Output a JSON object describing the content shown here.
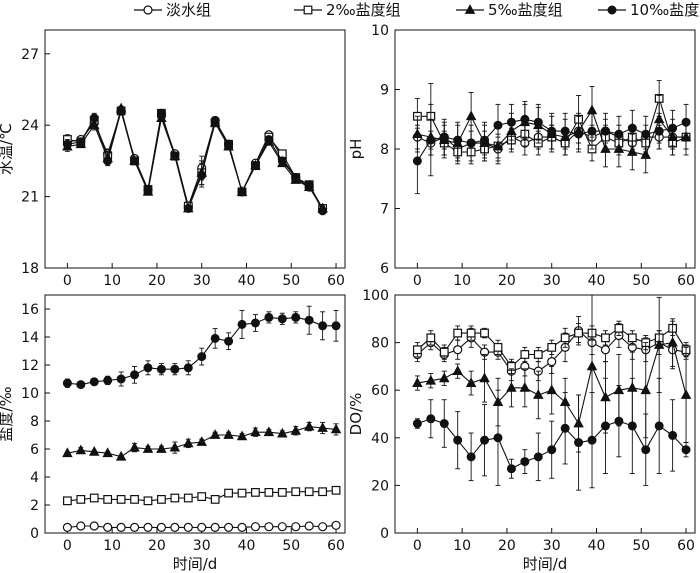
{
  "legend": {
    "items": [
      {
        "label": "淡水组",
        "marker": "open-circle"
      },
      {
        "label": "2‰盐度组",
        "marker": "open-square"
      },
      {
        "label": "5‰盐度组",
        "marker": "filled-triangle"
      },
      {
        "label": "10‰盐度组",
        "marker": "filled-circle"
      }
    ]
  },
  "chart_data": [
    {
      "type": "line",
      "panel": "top-left",
      "ylabel": "水温/℃",
      "xlabel": "",
      "xlim": [
        -5,
        62
      ],
      "ylim": [
        18,
        28
      ],
      "xticks": [
        0,
        10,
        20,
        30,
        40,
        50,
        60
      ],
      "yticks": [
        18,
        21,
        24,
        27
      ],
      "x": [
        0,
        3,
        6,
        9,
        12,
        15,
        18,
        21,
        24,
        27,
        30,
        33,
        36,
        39,
        42,
        45,
        48,
        51,
        54,
        57
      ],
      "series": [
        {
          "name": "淡水组",
          "marker": "open-circle",
          "values": [
            23.3,
            23.4,
            24.1,
            22.8,
            24.6,
            22.6,
            21.3,
            24.4,
            22.8,
            20.6,
            22.2,
            24.2,
            23.2,
            21.2,
            22.4,
            23.6,
            22.6,
            21.8,
            21.4,
            20.5
          ],
          "err": [
            0.2,
            0.1,
            0.2,
            0.2,
            0.1,
            0.1,
            0.1,
            0.1,
            0.1,
            0.1,
            0.5,
            0.1,
            0.1,
            0.1,
            0.1,
            0.1,
            0.1,
            0.1,
            0.1,
            0.1
          ]
        },
        {
          "name": "2‰盐度组",
          "marker": "open-square",
          "values": [
            23.4,
            23.3,
            24.2,
            22.7,
            24.6,
            22.5,
            21.3,
            24.5,
            22.7,
            20.6,
            22.0,
            24.1,
            23.2,
            21.2,
            22.3,
            23.5,
            22.8,
            21.8,
            21.5,
            20.5
          ],
          "err": [
            0.2,
            0.1,
            0.2,
            0.2,
            0.1,
            0.1,
            0.1,
            0.1,
            0.1,
            0.1,
            0.5,
            0.1,
            0.1,
            0.1,
            0.1,
            0.1,
            0.1,
            0.1,
            0.1,
            0.1
          ]
        },
        {
          "name": "5‰盐度组",
          "marker": "filled-triangle",
          "values": [
            23.1,
            23.2,
            24.0,
            22.6,
            24.7,
            22.5,
            21.2,
            24.3,
            22.7,
            20.5,
            22.0,
            24.1,
            23.1,
            21.2,
            22.3,
            23.3,
            22.4,
            21.7,
            21.4,
            20.5
          ],
          "err": [
            0.2,
            0.1,
            0.2,
            0.2,
            0.1,
            0.1,
            0.1,
            0.1,
            0.1,
            0.1,
            0.5,
            0.1,
            0.1,
            0.1,
            0.1,
            0.1,
            0.1,
            0.1,
            0.1,
            0.1
          ]
        },
        {
          "name": "10‰盐度组",
          "marker": "filled-circle",
          "values": [
            23.2,
            23.3,
            24.3,
            22.5,
            24.6,
            22.5,
            21.3,
            24.5,
            22.7,
            20.5,
            21.9,
            24.2,
            23.2,
            21.2,
            22.3,
            23.4,
            22.5,
            21.8,
            21.5,
            20.4
          ],
          "err": [
            0.2,
            0.1,
            0.2,
            0.2,
            0.1,
            0.1,
            0.1,
            0.1,
            0.1,
            0.1,
            0.5,
            0.1,
            0.1,
            0.1,
            0.1,
            0.1,
            0.1,
            0.1,
            0.1,
            0.1
          ]
        }
      ]
    },
    {
      "type": "line",
      "panel": "top-right",
      "ylabel": "pH",
      "xlabel": "",
      "xlim": [
        -5,
        62
      ],
      "ylim": [
        6,
        10
      ],
      "xticks": [
        0,
        10,
        20,
        30,
        40,
        50,
        60
      ],
      "yticks": [
        6,
        7,
        8,
        9,
        10
      ],
      "x": [
        0,
        3,
        6,
        9,
        12,
        15,
        18,
        21,
        24,
        27,
        30,
        33,
        36,
        39,
        42,
        45,
        48,
        51,
        54,
        57,
        60
      ],
      "series": [
        {
          "name": "淡水组",
          "marker": "open-circle",
          "values": [
            8.2,
            8.1,
            8.2,
            8.0,
            8.1,
            8.1,
            8.0,
            8.2,
            8.1,
            8.2,
            8.2,
            8.1,
            8.3,
            8.2,
            8.3,
            8.2,
            8.1,
            8.2,
            8.2,
            8.2,
            8.2
          ],
          "err": [
            0.2,
            0.2,
            0.2,
            0.2,
            0.2,
            0.2,
            0.2,
            0.2,
            0.2,
            0.2,
            0.2,
            0.2,
            0.2,
            0.2,
            0.2,
            0.2,
            0.2,
            0.2,
            0.2,
            0.2,
            0.2
          ]
        },
        {
          "name": "2‰盐度组",
          "marker": "open-square",
          "values": [
            8.55,
            8.55,
            8.1,
            7.95,
            7.95,
            8.0,
            8.05,
            8.15,
            8.25,
            8.1,
            8.2,
            8.1,
            8.5,
            8.0,
            8.2,
            8.1,
            8.2,
            8.1,
            8.85,
            8.1,
            8.2
          ],
          "err": [
            0.3,
            0.55,
            0.2,
            0.2,
            0.2,
            0.2,
            0.2,
            0.2,
            0.2,
            0.2,
            0.2,
            0.2,
            0.4,
            0.2,
            0.2,
            0.2,
            0.2,
            0.2,
            0.3,
            0.2,
            0.2
          ],
          "note": ""
        },
        {
          "name": "5‰盐度组",
          "marker": "filled-triangle",
          "values": [
            8.25,
            8.2,
            8.15,
            8.1,
            8.55,
            8.1,
            8.05,
            8.3,
            8.45,
            8.4,
            8.25,
            8.2,
            8.3,
            8.65,
            8.0,
            8.0,
            7.95,
            7.9,
            8.5,
            8.2,
            8.2
          ],
          "err": [
            0.3,
            0.3,
            0.3,
            0.3,
            0.4,
            0.3,
            0.3,
            0.3,
            0.3,
            0.3,
            0.3,
            0.3,
            0.3,
            0.4,
            0.3,
            0.3,
            0.3,
            0.3,
            0.4,
            0.3,
            0.3
          ]
        },
        {
          "name": "10‰盐度组",
          "marker": "filled-circle",
          "values": [
            7.8,
            8.15,
            8.2,
            8.15,
            8.1,
            8.15,
            8.4,
            8.45,
            8.5,
            8.45,
            8.3,
            8.3,
            8.25,
            8.3,
            8.3,
            8.25,
            8.35,
            8.25,
            8.3,
            8.35,
            8.45
          ],
          "err": [
            0.55,
            0.6,
            0.3,
            0.3,
            0.3,
            0.3,
            0.35,
            0.3,
            0.3,
            0.3,
            0.3,
            0.3,
            0.3,
            0.3,
            0.3,
            0.3,
            0.3,
            0.3,
            0.3,
            0.3,
            0.3
          ]
        }
      ]
    },
    {
      "type": "line",
      "panel": "bottom-left",
      "ylabel": "盐度/‰",
      "xlabel": "时间/d",
      "xlim": [
        -5,
        62
      ],
      "ylim": [
        0,
        17
      ],
      "xticks": [
        0,
        10,
        20,
        30,
        40,
        50,
        60
      ],
      "yticks": [
        0,
        2,
        4,
        6,
        8,
        10,
        12,
        14,
        16
      ],
      "x": [
        0,
        3,
        6,
        9,
        12,
        15,
        18,
        21,
        24,
        27,
        30,
        33,
        36,
        39,
        42,
        45,
        48,
        51,
        54,
        57,
        60
      ],
      "series": [
        {
          "name": "淡水组",
          "marker": "open-circle",
          "values": [
            0.4,
            0.5,
            0.5,
            0.4,
            0.4,
            0.4,
            0.4,
            0.4,
            0.4,
            0.4,
            0.4,
            0.4,
            0.4,
            0.4,
            0.45,
            0.45,
            0.45,
            0.45,
            0.5,
            0.45,
            0.55
          ],
          "err": [
            0.1,
            0.1,
            0.1,
            0.1,
            0.1,
            0.1,
            0.1,
            0.1,
            0.1,
            0.1,
            0.1,
            0.1,
            0.1,
            0.1,
            0.1,
            0.1,
            0.1,
            0.1,
            0.1,
            0.1,
            0.1
          ]
        },
        {
          "name": "2‰盐度组",
          "marker": "open-square",
          "values": [
            2.3,
            2.4,
            2.5,
            2.4,
            2.4,
            2.4,
            2.3,
            2.4,
            2.5,
            2.5,
            2.6,
            2.4,
            2.85,
            2.85,
            2.9,
            2.9,
            2.9,
            2.95,
            2.95,
            2.95,
            3.05
          ],
          "err": [
            0.1,
            0.1,
            0.1,
            0.1,
            0.1,
            0.1,
            0.1,
            0.1,
            0.1,
            0.1,
            0.1,
            0.1,
            0.15,
            0.1,
            0.1,
            0.1,
            0.1,
            0.1,
            0.1,
            0.1,
            0.1
          ]
        },
        {
          "name": "5‰盐度组",
          "marker": "filled-triangle",
          "values": [
            5.7,
            5.9,
            5.8,
            5.7,
            5.45,
            6.1,
            6.0,
            6.0,
            6.1,
            6.4,
            6.5,
            7.0,
            7.0,
            6.9,
            7.2,
            7.2,
            7.1,
            7.3,
            7.6,
            7.5,
            7.4
          ],
          "err": [
            0.1,
            0.2,
            0.1,
            0.1,
            0.1,
            0.3,
            0.2,
            0.2,
            0.4,
            0.3,
            0.2,
            0.2,
            0.2,
            0.2,
            0.3,
            0.2,
            0.2,
            0.3,
            0.3,
            0.4,
            0.4
          ]
        },
        {
          "name": "10‰盐度组",
          "marker": "filled-circle",
          "values": [
            10.7,
            10.6,
            10.8,
            10.9,
            11.0,
            11.3,
            11.8,
            11.7,
            11.7,
            11.8,
            12.6,
            13.9,
            13.7,
            14.9,
            15.0,
            15.4,
            15.3,
            15.4,
            15.2,
            14.8,
            14.8
          ],
          "err": [
            0.3,
            0.2,
            0.2,
            0.3,
            0.5,
            0.6,
            0.5,
            0.4,
            0.4,
            0.5,
            0.6,
            0.7,
            0.6,
            1.0,
            0.6,
            0.4,
            0.4,
            0.4,
            1.0,
            1.0,
            1.1
          ]
        }
      ]
    },
    {
      "type": "line",
      "panel": "bottom-right",
      "ylabel": "DO/%",
      "xlabel": "时间/d",
      "xlim": [
        -5,
        62
      ],
      "ylim": [
        0,
        100
      ],
      "xticks": [
        0,
        10,
        20,
        30,
        40,
        50,
        60
      ],
      "yticks": [
        0,
        20,
        40,
        60,
        80,
        100
      ],
      "x": [
        0,
        3,
        6,
        9,
        12,
        15,
        18,
        21,
        24,
        27,
        30,
        33,
        36,
        39,
        42,
        45,
        48,
        51,
        54,
        57,
        60
      ],
      "series": [
        {
          "name": "淡水组",
          "marker": "open-circle",
          "values": [
            75,
            80,
            75,
            77,
            82,
            76,
            76,
            68,
            70,
            68,
            72,
            78,
            85,
            80,
            77,
            83,
            78,
            77,
            80,
            77,
            76
          ],
          "err": [
            3,
            3,
            3,
            4,
            4,
            3,
            3,
            4,
            4,
            4,
            5,
            6,
            6,
            5,
            5,
            5,
            5,
            5,
            5,
            8,
            3
          ]
        },
        {
          "name": "2‰盐度组",
          "marker": "open-square",
          "values": [
            77,
            82,
            76,
            84,
            84,
            84,
            78,
            70,
            75,
            75,
            78,
            82,
            84,
            84,
            82,
            86,
            82,
            80,
            82,
            86,
            77
          ],
          "err": [
            3,
            3,
            3,
            3,
            3,
            2,
            3,
            3,
            3,
            3,
            3,
            4,
            4,
            3,
            3,
            3,
            3,
            3,
            3,
            3,
            3
          ]
        },
        {
          "name": "5‰盐度组",
          "marker": "filled-triangle",
          "values": [
            63,
            64,
            65,
            68,
            63,
            65,
            55,
            61,
            61,
            58,
            60,
            55,
            46,
            70,
            57,
            60,
            61,
            60,
            79,
            80,
            58
          ],
          "err": [
            3,
            3,
            3,
            3,
            5,
            10,
            10,
            8,
            8,
            10,
            10,
            10,
            12,
            30,
            15,
            15,
            15,
            20,
            20,
            10,
            20
          ]
        },
        {
          "name": "10‰盐度组",
          "marker": "filled-circle",
          "values": [
            46,
            48,
            46,
            39,
            32,
            39,
            40,
            27,
            30,
            32,
            35,
            44,
            38,
            39,
            45,
            47,
            45,
            35,
            45,
            41,
            35
          ],
          "err": [
            2,
            8,
            10,
            12,
            10,
            15,
            20,
            4,
            5,
            10,
            12,
            15,
            20,
            20,
            20,
            15,
            20,
            15,
            20,
            15,
            3
          ]
        }
      ]
    }
  ]
}
